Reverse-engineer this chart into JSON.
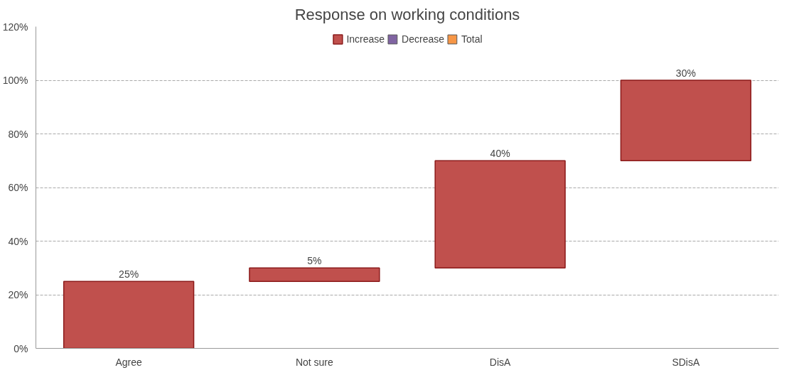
{
  "chart_data": {
    "type": "bar",
    "title": "Response on working conditions",
    "categories": [
      "Agree",
      "Not sure",
      "DisA",
      "SDisA"
    ],
    "series": [
      {
        "name": "Increase",
        "color": "#c0504d",
        "base": [
          0,
          25,
          30,
          70
        ],
        "values": [
          25,
          5,
          40,
          30
        ],
        "value_labels": [
          "25%",
          "5%",
          "40%",
          "30%"
        ]
      },
      {
        "name": "Decrease",
        "color": "#8064a2",
        "values": [
          null,
          null,
          null,
          null
        ]
      },
      {
        "name": "Total",
        "color": "#f79646",
        "values": [
          null,
          null,
          null,
          null
        ]
      }
    ],
    "ylim": [
      0,
      120
    ],
    "yticks": [
      {
        "value": 0,
        "label": "0%"
      },
      {
        "value": 20,
        "label": "20%"
      },
      {
        "value": 40,
        "label": "40%"
      },
      {
        "value": 60,
        "label": "60%"
      },
      {
        "value": 80,
        "label": "80%"
      },
      {
        "value": 100,
        "label": "100%"
      },
      {
        "value": 120,
        "label": "120%"
      }
    ],
    "grid": "y",
    "legend": "top"
  }
}
